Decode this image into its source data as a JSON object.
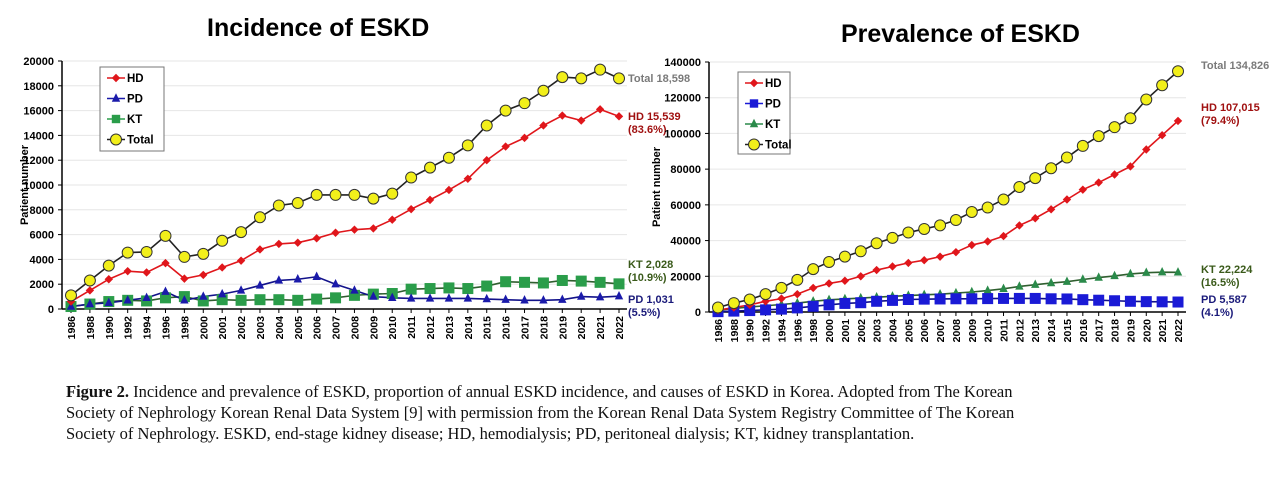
{
  "caption": {
    "label": "Figure 2.",
    "text": " Incidence and prevalence of ESKD, proportion of annual ESKD incidence, and causes of ESKD in Korea. Adopted from The Korean Society of Nephrology Korean Renal Data System [9] with permission from the Korean Renal Data System Registry Committee of The Korean Society of Nephrology. ESKD, end-stage kidney disease; HD, hemodialysis; PD, peritoneal dialysis; KT, kidney transplantation."
  },
  "chart_data": [
    {
      "type": "line",
      "title": "Incidence of ESKD",
      "xlabel": "",
      "ylabel": "Patient number",
      "ylim": [
        0,
        20000
      ],
      "yticks": [
        0,
        2000,
        4000,
        6000,
        8000,
        10000,
        12000,
        14000,
        16000,
        18000,
        20000
      ],
      "grid": true,
      "legend_position": "top-left",
      "x": [
        "1986",
        "1988",
        "1990",
        "1992",
        "1994",
        "1996",
        "1998",
        "2000",
        "2001",
        "2002",
        "2003",
        "2004",
        "2005",
        "2006",
        "2007",
        "2008",
        "2009",
        "2010",
        "2011",
        "2012",
        "2013",
        "2014",
        "2015",
        "2016",
        "2017",
        "2018",
        "2019",
        "2020",
        "2021",
        "2022"
      ],
      "series": [
        {
          "name": "HD",
          "color": "#e0161b",
          "marker": "diamond",
          "values": [
            600,
            1500,
            2400,
            3050,
            2950,
            3700,
            2450,
            2750,
            3350,
            3900,
            4800,
            5250,
            5350,
            5700,
            6150,
            6400,
            6500,
            7200,
            8050,
            8800,
            9600,
            10500,
            12000,
            13100,
            13800,
            14800,
            15600,
            15200,
            16100,
            15539
          ]
        },
        {
          "name": "PD",
          "color": "#1a1aaa",
          "marker": "triangle",
          "values": [
            200,
            400,
            500,
            700,
            900,
            1400,
            700,
            1000,
            1200,
            1500,
            1900,
            2300,
            2400,
            2600,
            2000,
            1500,
            1000,
            900,
            850,
            850,
            850,
            850,
            800,
            750,
            700,
            700,
            750,
            1000,
            950,
            1031
          ]
        },
        {
          "name": "KT",
          "color": "#2a9d4a",
          "marker": "square",
          "values": [
            200,
            400,
            600,
            700,
            650,
            900,
            1000,
            650,
            750,
            700,
            750,
            750,
            700,
            800,
            900,
            1100,
            1200,
            1250,
            1600,
            1650,
            1700,
            1650,
            1850,
            2200,
            2150,
            2100,
            2300,
            2250,
            2150,
            2028
          ]
        },
        {
          "name": "Total",
          "color": "#f2ef1a",
          "marker": "circle",
          "values": [
            1100,
            2300,
            3500,
            4550,
            4600,
            5900,
            4200,
            4450,
            5500,
            6200,
            7400,
            8350,
            8550,
            9200,
            9200,
            9200,
            8900,
            9300,
            10600,
            11400,
            12200,
            13200,
            14800,
            16000,
            16600,
            17600,
            18700,
            18600,
            19300,
            18598
          ]
        }
      ],
      "annotations": [
        {
          "series": "Total",
          "lines": [
            "Total 18,598"
          ],
          "color": "#7a7a7a"
        },
        {
          "series": "HD",
          "lines": [
            "HD 15,539",
            "(83.6%)"
          ],
          "color": "#a01010"
        },
        {
          "series": "KT",
          "lines": [
            "KT 2,028",
            "(10.9%)"
          ],
          "color": "#3a5a1a"
        },
        {
          "series": "PD",
          "lines": [
            "PD 1,031",
            "(5.5%)"
          ],
          "color": "#1a1a7a"
        }
      ]
    },
    {
      "type": "line",
      "title": "Prevalence of ESKD",
      "xlabel": "",
      "ylabel": "Patient number",
      "ylim": [
        0,
        140000
      ],
      "yticks": [
        0,
        20000,
        40000,
        60000,
        80000,
        100000,
        120000,
        140000
      ],
      "grid": true,
      "legend_position": "top-left",
      "x": [
        "1986",
        "1988",
        "1990",
        "1992",
        "1994",
        "1996",
        "1998",
        "2000",
        "2001",
        "2002",
        "2003",
        "2004",
        "2005",
        "2006",
        "2007",
        "2008",
        "2009",
        "2010",
        "2011",
        "2012",
        "2013",
        "2014",
        "2015",
        "2016",
        "2017",
        "2018",
        "2019",
        "2020",
        "2021",
        "2022"
      ],
      "series": [
        {
          "name": "HD",
          "color": "#e0161b",
          "marker": "diamond",
          "values": [
            1000,
            2500,
            4000,
            6000,
            7500,
            10000,
            13500,
            16000,
            17500,
            20000,
            23500,
            25500,
            27500,
            29000,
            31000,
            33500,
            37500,
            39500,
            42500,
            48500,
            52500,
            57500,
            63000,
            68500,
            72500,
            77000,
            81500,
            91000,
            99000,
            107015
          ]
        },
        {
          "name": "PD",
          "color": "#1a1ad6",
          "marker": "square",
          "values": [
            200,
            500,
            800,
            1200,
            1600,
            2300,
            3200,
            4000,
            4800,
            5200,
            6000,
            6500,
            7000,
            7200,
            7300,
            7400,
            7400,
            7500,
            7600,
            7600,
            7600,
            7400,
            7300,
            6900,
            6600,
            6300,
            6000,
            5800,
            5700,
            5587
          ]
        },
        {
          "name": "KT",
          "color": "#2a8a4a",
          "marker": "triangle",
          "values": [
            1000,
            2000,
            2800,
            3500,
            4200,
            5000,
            6000,
            6800,
            7300,
            7800,
            8300,
            8800,
            9200,
            9600,
            10000,
            10600,
            11200,
            12000,
            13000,
            14300,
            15300,
            16200,
            17000,
            18200,
            19300,
            20200,
            21300,
            22000,
            22300,
            22224
          ]
        },
        {
          "name": "Total",
          "color": "#f2ef1a",
          "marker": "circle",
          "values": [
            2500,
            5000,
            7000,
            10000,
            13500,
            18000,
            24000,
            28000,
            31000,
            34000,
            38500,
            41500,
            44500,
            46500,
            48500,
            51500,
            56000,
            58500,
            63000,
            70000,
            75000,
            80500,
            86500,
            93000,
            98500,
            103500,
            108500,
            119000,
            127000,
            134826
          ]
        }
      ],
      "annotations": [
        {
          "series": "Total",
          "lines": [
            "Total 134,826"
          ],
          "color": "#7a7a7a"
        },
        {
          "series": "HD",
          "lines": [
            "HD 107,015",
            "(79.4%)"
          ],
          "color": "#a01010"
        },
        {
          "series": "KT",
          "lines": [
            "KT 22,224",
            "(16.5%)"
          ],
          "color": "#3a5a1a"
        },
        {
          "series": "PD",
          "lines": [
            "PD 5,587",
            "(4.1%)"
          ],
          "color": "#1a1a7a"
        }
      ]
    }
  ]
}
